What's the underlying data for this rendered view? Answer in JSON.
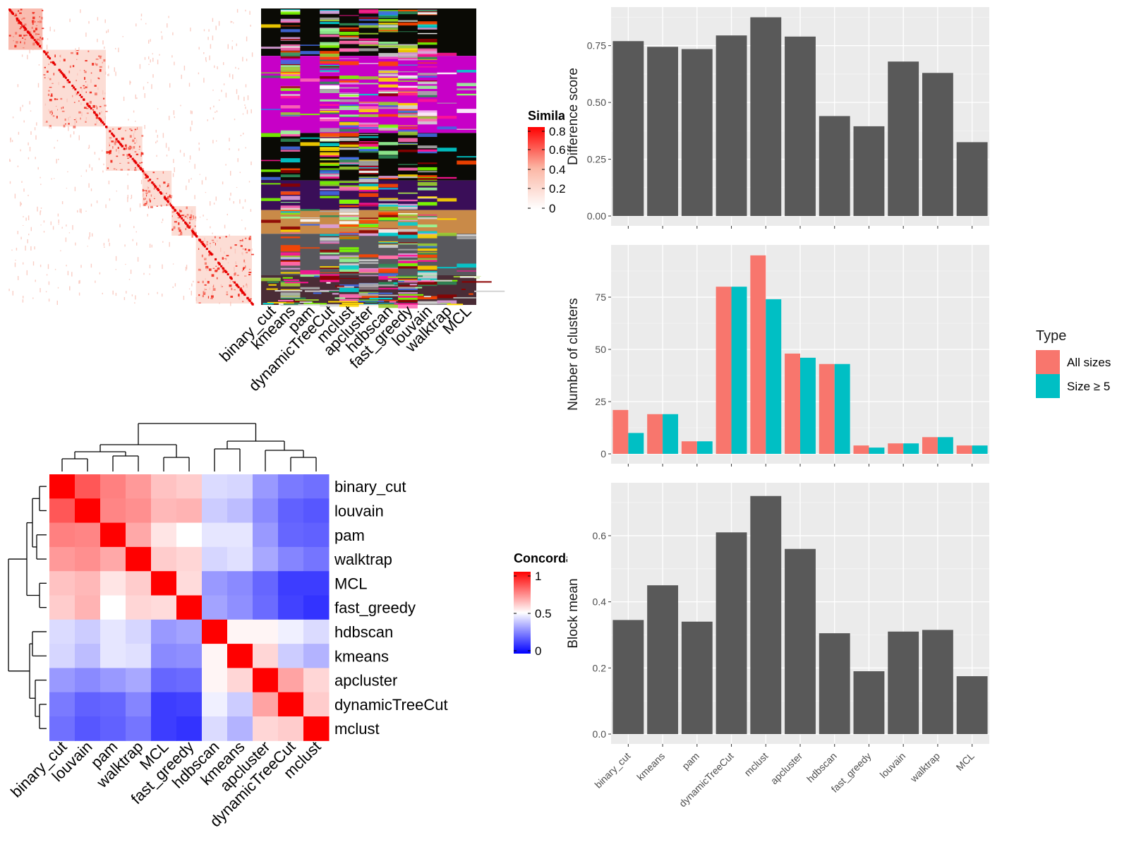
{
  "colors": {
    "bar": "#595959",
    "panel": "#ebebeb",
    "grid": "#ffffff",
    "all_sizes": "#F8766D",
    "size5": "#00BFC4",
    "concordance_high": "#ff0000",
    "concordance_mid": "#ffffff",
    "concordance_low": "#0000ff"
  },
  "similarity_legend": {
    "title": "Similarity",
    "ticks": [
      "0.8",
      "0.6",
      "0.4",
      "0.2",
      "0"
    ]
  },
  "concordance_legend": {
    "title": "Concordance",
    "ticks": [
      "1",
      "0.5",
      "0"
    ]
  },
  "membership_heatmap": {
    "methods": [
      "binary_cut",
      "kmeans",
      "pam",
      "dynamicTreeCut",
      "mclust",
      "apcluster",
      "hdbscan",
      "fast_greedy",
      "louvain",
      "walktrap",
      "MCL"
    ]
  },
  "chart_data": [
    {
      "type": "bar",
      "categories": [
        "binary_cut",
        "kmeans",
        "pam",
        "dynamicTreeCut",
        "mclust",
        "apcluster",
        "hdbscan",
        "fast_greedy",
        "louvain",
        "walktrap",
        "MCL"
      ],
      "values": [
        0.77,
        0.745,
        0.735,
        0.795,
        0.875,
        0.79,
        0.44,
        0.395,
        0.68,
        0.63,
        0.325
      ],
      "ylabel": "Difference score",
      "ylim": [
        0,
        0.92
      ],
      "yticks": [
        "0.00",
        "0.25",
        "0.50",
        "0.75"
      ],
      "ytick_values": [
        0,
        0.25,
        0.5,
        0.75
      ]
    },
    {
      "type": "bar",
      "categories": [
        "binary_cut",
        "kmeans",
        "pam",
        "dynamicTreeCut",
        "mclust",
        "apcluster",
        "hdbscan",
        "fast_greedy",
        "louvain",
        "walktrap",
        "MCL"
      ],
      "series": [
        {
          "name": "All sizes",
          "values": [
            21,
            19,
            6,
            80,
            95,
            48,
            43,
            4,
            5,
            8,
            4
          ]
        },
        {
          "name": "Size ≥ 5",
          "values": [
            10,
            19,
            6,
            80,
            74,
            46,
            43,
            3,
            5,
            8,
            4
          ]
        }
      ],
      "ylabel": "Number of clusters",
      "ylim": [
        0,
        100
      ],
      "yticks": [
        "0",
        "25",
        "50",
        "75"
      ],
      "ytick_values": [
        0,
        25,
        50,
        75
      ],
      "legend_title": "Type",
      "legend_position": "right"
    },
    {
      "type": "bar",
      "categories": [
        "binary_cut",
        "kmeans",
        "pam",
        "dynamicTreeCut",
        "mclust",
        "apcluster",
        "hdbscan",
        "fast_greedy",
        "louvain",
        "walktrap",
        "MCL"
      ],
      "values": [
        0.345,
        0.45,
        0.34,
        0.61,
        0.72,
        0.56,
        0.305,
        0.19,
        0.31,
        0.315,
        0.175
      ],
      "ylabel": "Block mean",
      "ylim": [
        0,
        0.76
      ],
      "yticks": [
        "0.0",
        "0.2",
        "0.4",
        "0.6"
      ],
      "ytick_values": [
        0,
        0.2,
        0.4,
        0.6
      ]
    },
    {
      "type": "heatmap",
      "title": "",
      "rows": [
        "binary_cut",
        "louvain",
        "pam",
        "walktrap",
        "MCL",
        "fast_greedy",
        "hdbscan",
        "kmeans",
        "apcluster",
        "dynamicTreeCut",
        "mclust"
      ],
      "cols": [
        "binary_cut",
        "louvain",
        "pam",
        "walktrap",
        "MCL",
        "fast_greedy",
        "hdbscan",
        "kmeans",
        "apcluster",
        "dynamicTreeCut",
        "mclust"
      ],
      "values": [
        [
          1.0,
          0.83,
          0.75,
          0.7,
          0.62,
          0.6,
          0.43,
          0.42,
          0.3,
          0.24,
          0.22
        ],
        [
          0.83,
          1.0,
          0.74,
          0.72,
          0.64,
          0.65,
          0.4,
          0.37,
          0.27,
          0.19,
          0.17
        ],
        [
          0.75,
          0.74,
          1.0,
          0.67,
          0.55,
          0.5,
          0.45,
          0.45,
          0.3,
          0.2,
          0.19
        ],
        [
          0.7,
          0.72,
          0.67,
          1.0,
          0.6,
          0.58,
          0.42,
          0.44,
          0.33,
          0.26,
          0.23
        ],
        [
          0.62,
          0.64,
          0.55,
          0.6,
          1.0,
          0.57,
          0.3,
          0.27,
          0.2,
          0.12,
          0.12
        ],
        [
          0.6,
          0.65,
          0.5,
          0.58,
          0.57,
          1.0,
          0.32,
          0.28,
          0.21,
          0.13,
          0.1
        ],
        [
          0.43,
          0.4,
          0.45,
          0.42,
          0.3,
          0.32,
          1.0,
          0.52,
          0.52,
          0.47,
          0.43
        ],
        [
          0.42,
          0.37,
          0.45,
          0.44,
          0.27,
          0.28,
          0.52,
          1.0,
          0.58,
          0.4,
          0.35
        ],
        [
          0.3,
          0.27,
          0.3,
          0.33,
          0.2,
          0.21,
          0.52,
          0.58,
          1.0,
          0.68,
          0.58
        ],
        [
          0.24,
          0.19,
          0.2,
          0.26,
          0.12,
          0.13,
          0.47,
          0.4,
          0.68,
          1.0,
          0.6
        ],
        [
          0.22,
          0.17,
          0.19,
          0.23,
          0.12,
          0.1,
          0.43,
          0.35,
          0.58,
          0.6,
          1.0
        ]
      ],
      "scale": [
        0,
        0.5,
        1
      ]
    }
  ]
}
